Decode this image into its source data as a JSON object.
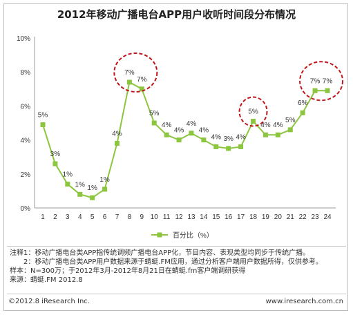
{
  "title": "2012年移动广播电台APP用户收听时间段分布情况",
  "chart_data": {
    "type": "line",
    "x": [
      1,
      2,
      3,
      4,
      5,
      6,
      7,
      8,
      9,
      10,
      11,
      12,
      13,
      14,
      15,
      16,
      17,
      18,
      19,
      20,
      21,
      22,
      23,
      24
    ],
    "series": [
      {
        "name": "百分比（%）",
        "values": [
          4.9,
          2.6,
          1.4,
          0.8,
          0.6,
          1.1,
          3.8,
          7.4,
          7.0,
          5.0,
          4.3,
          4.0,
          4.4,
          4.0,
          3.6,
          3.5,
          3.6,
          5.1,
          4.3,
          4.3,
          4.6,
          5.6,
          6.9,
          6.9
        ],
        "labels": [
          "5%",
          "3%",
          "1%",
          "1%",
          "1%",
          "1%",
          "4%",
          "7%",
          "7%",
          "5%",
          "4%",
          "4%",
          "4%",
          "4%",
          "4%",
          "3%",
          "4%",
          "5%",
          "4%",
          "4%",
          "5%",
          "6%",
          "7%",
          "7%"
        ]
      }
    ],
    "yticks": [
      "0%",
      "2%",
      "4%",
      "6%",
      "8%",
      "10%"
    ],
    "ylim": [
      0,
      10
    ],
    "legend": "bottom-center",
    "color": "#8cc63f",
    "highlight_color": "#c0161b",
    "highlights": [
      [
        8,
        9
      ],
      [
        18
      ],
      [
        23,
        24
      ]
    ]
  },
  "notes": {
    "line1": "注释1：移动广播电台类APP指传统调频广播电台APP化，节目内容、表现类型均同步于传统广播。",
    "line2": "　　2：移动广播电台类APP用户数据来源于蜻蜓.FM应用，通过分析客户端用户数据所得，仅供参考。",
    "line3": "样本：N=300万；于2012年3月-2012年8月21日在蜻蜓.fm客户端调研获得",
    "line4": "来源：蜻蜓.FM  2012.8"
  },
  "footer": {
    "left": "©2012.8 iResearch Inc.",
    "right": "www.iresearch.com.cn"
  }
}
